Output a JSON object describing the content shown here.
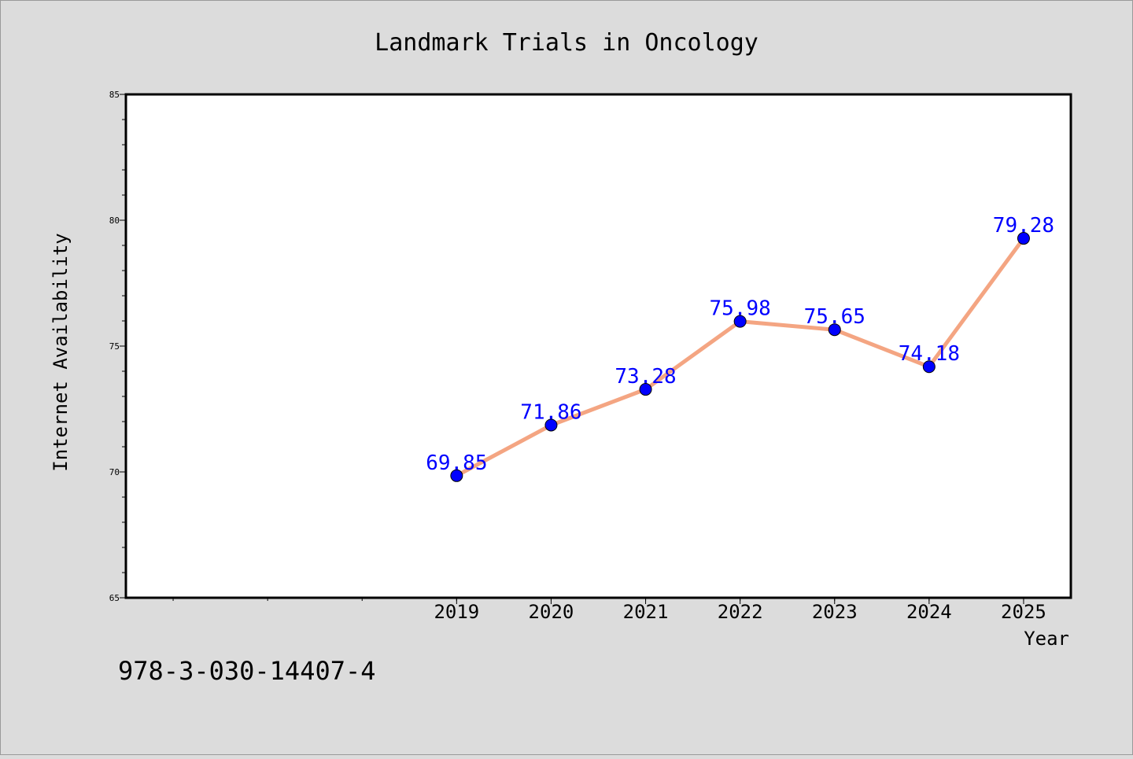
{
  "title": "Landmark Trials in Oncology",
  "ylabel": "Internet Availability",
  "xlabel": "Year",
  "note": "978-3-030-14407-4",
  "colors": {
    "background": "#dcdcdc",
    "plot_background": "#ffffff",
    "line": "#f4a582",
    "marker": "#0000ff",
    "data_label": "#0000ff"
  },
  "chart_data": {
    "type": "line",
    "title": "Landmark Trials in Oncology",
    "xlabel": "Year",
    "ylabel": "Internet Availability",
    "categories": [
      "2019",
      "2020",
      "2021",
      "2022",
      "2023",
      "2024",
      "2025"
    ],
    "series": [
      {
        "values": [
          69.85,
          71.86,
          73.28,
          75.98,
          75.65,
          74.18,
          79.28
        ]
      }
    ],
    "data_labels": [
      "69.85",
      "71.86",
      "73.28",
      "75.98",
      "75.65",
      "74.18",
      "79.28"
    ],
    "x_range": [
      2015.5,
      2025.5
    ],
    "ylim": [
      65,
      85
    ],
    "yticks": [
      65,
      70,
      75,
      80,
      85
    ],
    "grid": false,
    "legend": "none"
  }
}
